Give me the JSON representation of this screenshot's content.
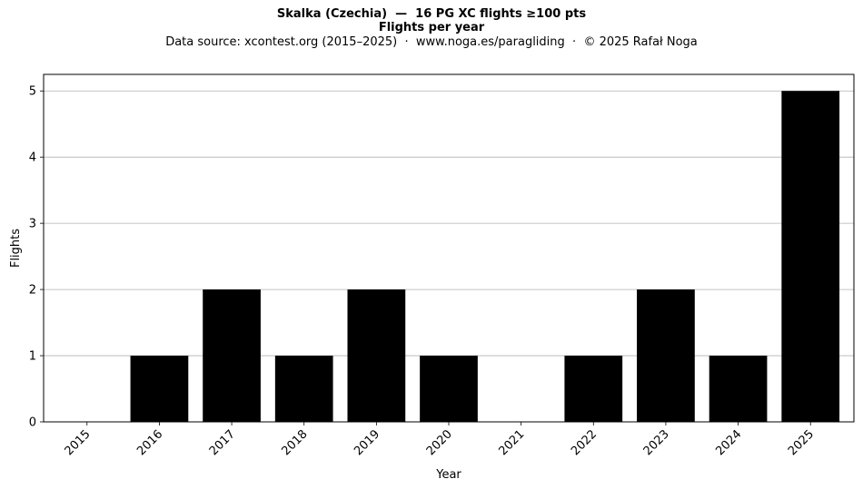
{
  "chart_data": {
    "type": "bar",
    "title_line1": "Skalka (Czechia)  —  16 PG XC flights ≥100 pts",
    "title_line2": "Flights per year",
    "subtitle": "Data source: xcontest.org (2015–2025)  ·  www.noga.es/paragliding  ·  © 2025 Rafał Noga",
    "xlabel": "Year",
    "ylabel": "Flights",
    "categories": [
      "2015",
      "2016",
      "2017",
      "2018",
      "2019",
      "2020",
      "2021",
      "2022",
      "2023",
      "2024",
      "2025"
    ],
    "values": [
      0,
      1,
      2,
      1,
      2,
      1,
      0,
      1,
      2,
      1,
      5
    ],
    "ylim": [
      0,
      5.25
    ],
    "yticks": [
      0,
      1,
      2,
      3,
      4,
      5
    ],
    "grid": "horizontal",
    "bar_color": "#000000",
    "grid_color": "#b0b0b0"
  }
}
